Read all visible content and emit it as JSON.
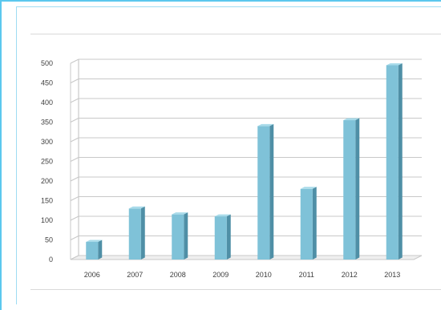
{
  "chart_data": {
    "type": "bar",
    "title": "",
    "xlabel": "",
    "ylabel": "",
    "categories": [
      "2006",
      "2007",
      "2008",
      "2009",
      "2010",
      "2011",
      "2012",
      "2013"
    ],
    "values": [
      45,
      130,
      115,
      110,
      340,
      180,
      355,
      495
    ],
    "ylim": [
      0,
      500
    ],
    "yticks": [
      "0",
      "50",
      "100",
      "150",
      "200",
      "250",
      "300",
      "350",
      "400",
      "450",
      "500"
    ],
    "grid": true,
    "legend": "none",
    "bar_color": "#7fc2d8",
    "bar_side_color": "#4f8fa6",
    "bar_top_color": "#a9dbea",
    "style": "3d-column"
  }
}
